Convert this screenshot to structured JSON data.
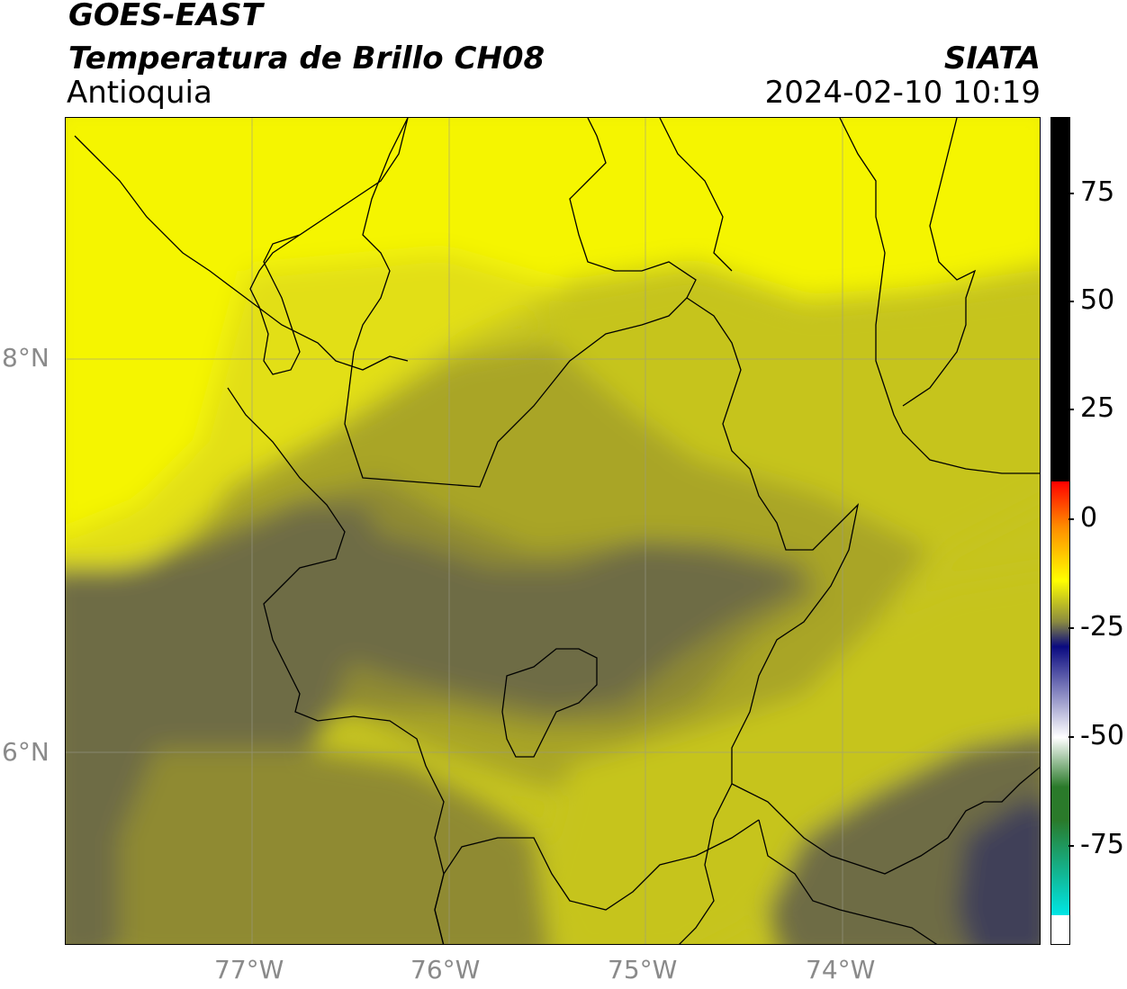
{
  "header": {
    "satellite": "GOES-EAST",
    "product": "Temperatura de Brillo CH08",
    "region": "Antioquia",
    "brand": "SIATA",
    "datetime": "2024-02-10 10:19"
  },
  "map": {
    "lon_ticks": [
      "77°W",
      "76°W",
      "75°W",
      "74°W"
    ],
    "lat_ticks": [
      "8°N",
      "6°N"
    ],
    "gridlines": true,
    "colors": {
      "bright_yellow": "#f5f500",
      "yellow": "#e2df14",
      "olive_light": "#c6c41f",
      "olive": "#a9a527",
      "olive_dark": "#8f8a30",
      "dark": "#6e6c45",
      "darkest": "#3f3f58",
      "grid": "#9a9a8a",
      "borders": "#000000"
    }
  },
  "colorbar": {
    "tick_labels": [
      "75",
      "50",
      "25",
      "0",
      "-25",
      "-50",
      "-75"
    ],
    "colors": {
      "top": "#000000",
      "red": "#ff0000",
      "orange": "#ff8c00",
      "yellow": "#ffff00",
      "olive": "#8a8a40",
      "navy": "#0a0a80",
      "white": "#ffffff",
      "green": "#2a7a2a",
      "cyan": "#00e5e5"
    }
  }
}
